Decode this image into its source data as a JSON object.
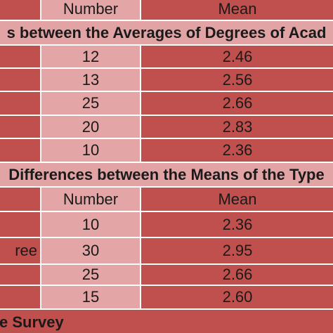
{
  "table": {
    "top_header": {
      "number": "Number",
      "mean": "Mean"
    },
    "section_1": {
      "title": "s between the Averages of Degrees of Acad",
      "rows": [
        {
          "number": "12",
          "mean": "2.46"
        },
        {
          "number": "13",
          "mean": "2.56"
        },
        {
          "number": "25",
          "mean": "2.66"
        },
        {
          "number": "20",
          "mean": "2.83"
        },
        {
          "number": "10",
          "mean": "2.36"
        }
      ]
    },
    "section_2": {
      "title": "Differences between the Means of the Type",
      "header": {
        "number": "Number",
        "mean": "Mean"
      },
      "rows": [
        {
          "number": "10",
          "mean": "2.36"
        },
        {
          "label": "ree",
          "number": "30",
          "mean": "2.95"
        },
        {
          "number": "25",
          "mean": "2.66"
        },
        {
          "number": "15",
          "mean": "2.60"
        }
      ]
    },
    "footer": "e Survey"
  }
}
